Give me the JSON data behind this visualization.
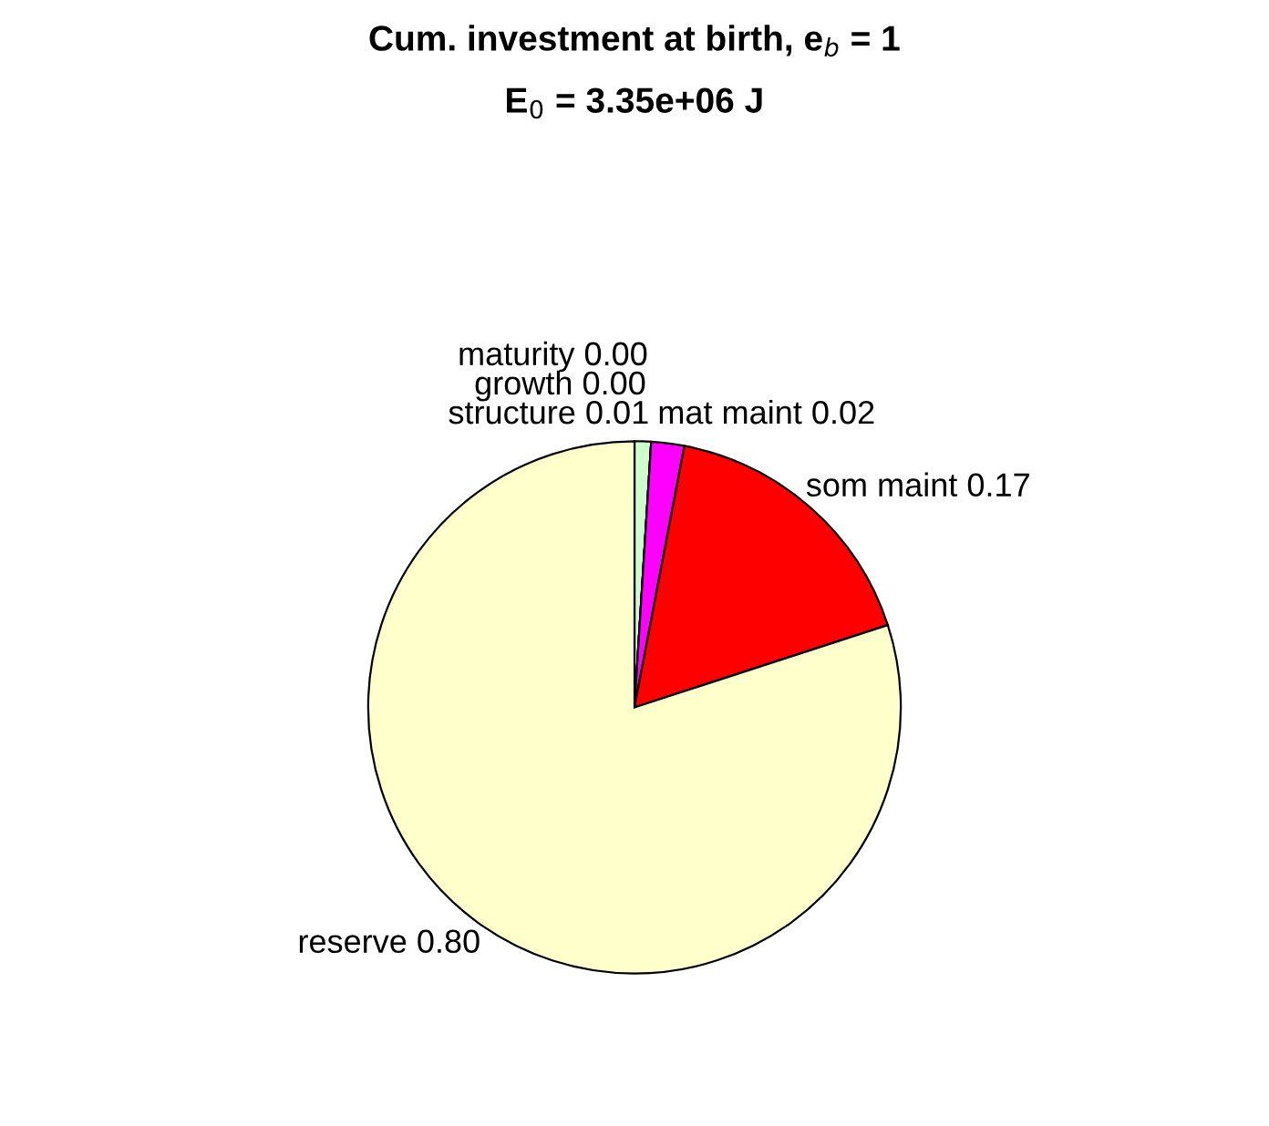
{
  "chart_data": {
    "type": "pie",
    "title": "Cum. investment at birth, e$_{b}$ = 1",
    "subtitle": "E$_{0}$ = 3.35e+06 J",
    "categories": [
      "structure",
      "growth",
      "maturity",
      "mat maint",
      "som maint",
      "reserve"
    ],
    "values": [
      0.01,
      0.0,
      0.0,
      0.02,
      0.17,
      0.8
    ],
    "value_labels": [
      "0.01",
      "0.00",
      "0.00",
      "0.02",
      "0.17",
      "0.80"
    ],
    "colors": [
      "#ccffcc",
      "#00ff00",
      "#0000ff",
      "#ff00ff",
      "#ff0000",
      "#ffffcc"
    ],
    "legend": false
  }
}
